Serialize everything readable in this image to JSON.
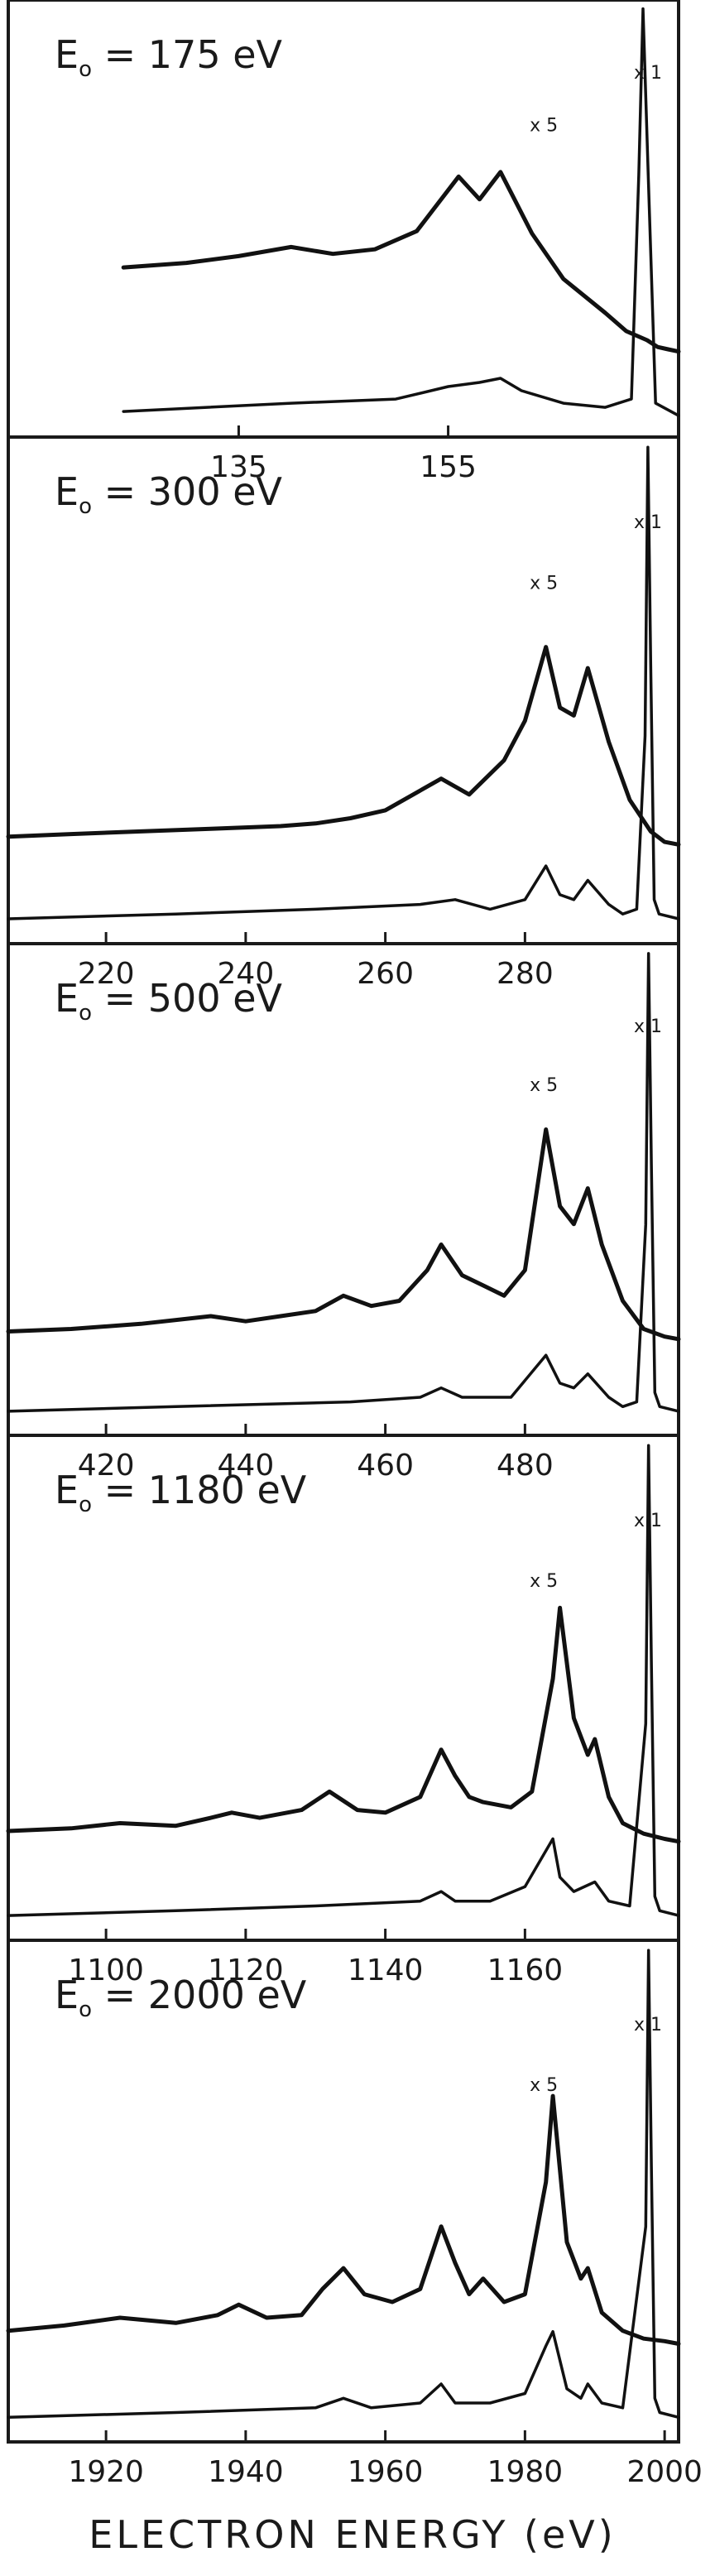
{
  "chart_data": [
    {
      "type": "line",
      "title": "E₀ = 175 eV",
      "title_parts": {
        "prefix": "E",
        "subscript": "o",
        "value": "175 eV"
      },
      "x_ticks": [
        135,
        155
      ],
      "x_tick_labels": [
        "135",
        "155"
      ],
      "xlim": [
        113,
        177
      ],
      "annotations": [
        "x 5",
        "x 1"
      ],
      "series": [
        {
          "name": "x 5",
          "x": [
            124,
            130,
            135,
            140,
            144,
            148,
            152,
            156,
            158,
            160,
            163,
            166,
            170,
            172,
            174,
            175,
            176,
            177
          ],
          "y": [
            0.4,
            0.42,
            0.45,
            0.49,
            0.46,
            0.48,
            0.56,
            0.8,
            0.7,
            0.82,
            0.55,
            0.35,
            0.2,
            0.12,
            0.08,
            0.05,
            0.04,
            0.03
          ]
        },
        {
          "name": "x 1",
          "x": [
            124,
            140,
            150,
            155,
            158,
            160,
            162,
            166,
            170,
            172.5,
            173.2,
            173.6,
            174.1,
            174.8,
            177
          ],
          "y": [
            0.03,
            0.05,
            0.06,
            0.09,
            0.1,
            0.11,
            0.08,
            0.05,
            0.04,
            0.06,
            0.6,
            1.0,
            0.6,
            0.05,
            0.02
          ]
        }
      ]
    },
    {
      "type": "line",
      "title": "E₀ = 300 eV",
      "title_parts": {
        "prefix": "E",
        "subscript": "o",
        "value": "300 eV"
      },
      "x_ticks": [
        220,
        240,
        260,
        280
      ],
      "x_tick_labels": [
        "220",
        "240",
        "260",
        "280"
      ],
      "xlim": [
        206,
        302
      ],
      "annotations": [
        "x 5",
        "x 1"
      ],
      "series": [
        {
          "name": "x 5",
          "x": [
            206,
            215,
            225,
            235,
            245,
            250,
            255,
            260,
            264,
            268,
            272,
            277,
            280,
            283,
            285,
            287,
            289,
            292,
            295,
            298,
            300,
            302
          ],
          "y": [
            0.06,
            0.07,
            0.08,
            0.09,
            0.1,
            0.11,
            0.13,
            0.16,
            0.22,
            0.28,
            0.22,
            0.35,
            0.5,
            0.78,
            0.55,
            0.52,
            0.7,
            0.42,
            0.2,
            0.08,
            0.04,
            0.03
          ]
        },
        {
          "name": "x 1",
          "x": [
            206,
            230,
            250,
            265,
            270,
            275,
            280,
            283,
            285,
            287,
            289,
            292,
            294,
            296,
            297.2,
            297.6,
            298,
            298.5,
            299.2,
            302
          ],
          "y": [
            0.02,
            0.03,
            0.04,
            0.05,
            0.06,
            0.04,
            0.06,
            0.13,
            0.07,
            0.06,
            0.1,
            0.05,
            0.03,
            0.04,
            0.4,
            1.0,
            0.55,
            0.06,
            0.03,
            0.02
          ]
        }
      ]
    },
    {
      "type": "line",
      "title": "E₀ = 500 eV",
      "title_parts": {
        "prefix": "E",
        "subscript": "o",
        "value": "500 eV"
      },
      "x_ticks": [
        420,
        440,
        460,
        480
      ],
      "x_tick_labels": [
        "420",
        "440",
        "460",
        "480"
      ],
      "xlim": [
        406,
        502
      ],
      "annotations": [
        "x 5",
        "x 1"
      ],
      "series": [
        {
          "name": "x 5",
          "x": [
            406,
            415,
            425,
            435,
            440,
            445,
            450,
            454,
            458,
            462,
            466,
            468,
            471,
            474,
            477,
            480,
            483,
            485,
            487,
            489,
            491,
            494,
            497,
            500,
            502
          ],
          "y": [
            0.06,
            0.07,
            0.09,
            0.12,
            0.1,
            0.12,
            0.14,
            0.2,
            0.16,
            0.18,
            0.3,
            0.4,
            0.28,
            0.24,
            0.2,
            0.3,
            0.85,
            0.55,
            0.48,
            0.62,
            0.4,
            0.18,
            0.07,
            0.04,
            0.03
          ]
        },
        {
          "name": "x 1",
          "x": [
            406,
            430,
            455,
            465,
            468,
            471,
            478,
            483,
            485,
            487,
            489,
            492,
            494,
            496,
            497.3,
            497.7,
            498.1,
            498.6,
            499.3,
            502
          ],
          "y": [
            0.02,
            0.03,
            0.04,
            0.05,
            0.07,
            0.05,
            0.05,
            0.14,
            0.08,
            0.07,
            0.1,
            0.05,
            0.03,
            0.04,
            0.42,
            1.0,
            0.55,
            0.06,
            0.03,
            0.02
          ]
        }
      ]
    },
    {
      "type": "line",
      "title": "E₀ = 1180 eV",
      "title_parts": {
        "prefix": "E",
        "subscript": "o",
        "value": "1180 eV"
      },
      "x_ticks": [
        1100,
        1120,
        1140,
        1160
      ],
      "x_tick_labels": [
        "1100",
        "1120",
        "1140",
        "1160"
      ],
      "xlim": [
        1086,
        1182
      ],
      "annotations": [
        "x 5",
        "x 1"
      ],
      "series": [
        {
          "name": "x 5",
          "x": [
            1086,
            1095,
            1102,
            1110,
            1115,
            1118,
            1122,
            1128,
            1132,
            1136,
            1140,
            1145,
            1148,
            1150,
            1152,
            1154,
            1158,
            1161,
            1164,
            1165,
            1167,
            1169,
            1170,
            1172,
            1174,
            1177,
            1180,
            1182
          ],
          "y": [
            0.07,
            0.08,
            0.1,
            0.09,
            0.12,
            0.14,
            0.12,
            0.15,
            0.22,
            0.15,
            0.14,
            0.2,
            0.38,
            0.28,
            0.2,
            0.18,
            0.16,
            0.22,
            0.65,
            0.92,
            0.5,
            0.36,
            0.42,
            0.2,
            0.1,
            0.06,
            0.04,
            0.03
          ]
        },
        {
          "name": "x 1",
          "x": [
            1086,
            1110,
            1130,
            1145,
            1148,
            1150,
            1155,
            1160,
            1164,
            1165,
            1167,
            1170,
            1172,
            1175,
            1177.3,
            1177.7,
            1178.1,
            1178.6,
            1179.3,
            1182
          ],
          "y": [
            0.02,
            0.03,
            0.04,
            0.05,
            0.07,
            0.05,
            0.05,
            0.08,
            0.18,
            0.1,
            0.07,
            0.09,
            0.05,
            0.04,
            0.42,
            1.0,
            0.55,
            0.06,
            0.03,
            0.02
          ]
        }
      ]
    },
    {
      "type": "line",
      "title": "E₀ = 2000 eV",
      "title_parts": {
        "prefix": "E",
        "subscript": "o",
        "value": "2000 eV"
      },
      "x_ticks": [
        1920,
        1940,
        1960,
        1980,
        2000
      ],
      "x_tick_labels": [
        "1920",
        "1940",
        "1960",
        "1980",
        "2000"
      ],
      "xlim": [
        1906,
        2002
      ],
      "xlabel": "ELECTRON ENERGY (eV)",
      "annotations": [
        "x 5",
        "x 1"
      ],
      "series": [
        {
          "name": "x 5",
          "x": [
            1906,
            1914,
            1922,
            1930,
            1936,
            1939,
            1943,
            1948,
            1951,
            1954,
            1957,
            1961,
            1965,
            1968,
            1970,
            1972,
            1974,
            1977,
            1980,
            1983,
            1984,
            1986,
            1988,
            1989,
            1991,
            1994,
            1997,
            2000,
            2002
          ],
          "y": [
            0.08,
            0.1,
            0.13,
            0.11,
            0.14,
            0.18,
            0.13,
            0.14,
            0.24,
            0.32,
            0.22,
            0.19,
            0.24,
            0.48,
            0.34,
            0.22,
            0.28,
            0.19,
            0.22,
            0.65,
            0.98,
            0.42,
            0.28,
            0.32,
            0.15,
            0.08,
            0.05,
            0.04,
            0.03
          ]
        },
        {
          "name": "x 1",
          "x": [
            1906,
            1930,
            1950,
            1954,
            1958,
            1965,
            1968,
            1970,
            1975,
            1980,
            1983,
            1984,
            1986,
            1988,
            1989,
            1991,
            1994,
            1997.3,
            1997.7,
            1998.1,
            1998.6,
            1999.3,
            2002
          ],
          "y": [
            0.02,
            0.03,
            0.04,
            0.06,
            0.04,
            0.05,
            0.09,
            0.05,
            0.05,
            0.07,
            0.17,
            0.2,
            0.08,
            0.06,
            0.09,
            0.05,
            0.04,
            0.42,
            1.0,
            0.55,
            0.06,
            0.03,
            0.02
          ]
        }
      ]
    }
  ]
}
